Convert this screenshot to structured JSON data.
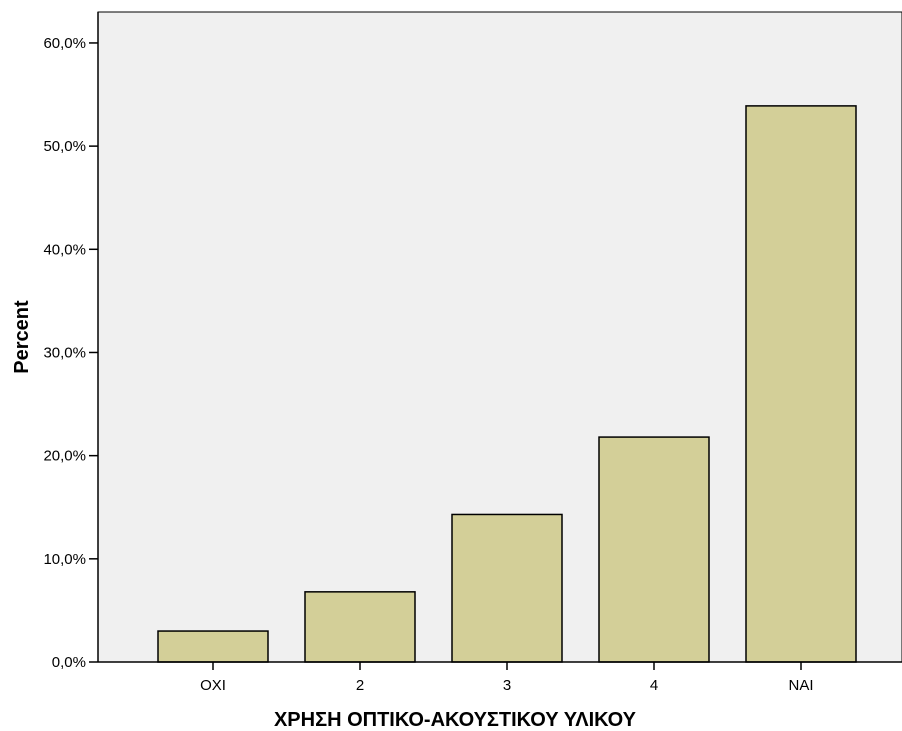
{
  "chart_data": {
    "type": "bar",
    "title": "",
    "xlabel": "ΧΡΗΣΗ ΟΠΤΙΚΟ-ΑΚΟΥΣΤΙΚΟΥ ΥΛΙΚΟΥ",
    "ylabel": "Percent",
    "categories": [
      "ΟΧΙ",
      "2",
      "3",
      "4",
      "ΝΑΙ"
    ],
    "values": [
      3.0,
      6.8,
      14.3,
      21.8,
      53.9
    ],
    "ylim": [
      0,
      63
    ],
    "yticks": [
      0,
      10,
      20,
      30,
      40,
      50,
      60
    ],
    "ytick_labels": [
      "0,0%",
      "10,0%",
      "20,0%",
      "30,0%",
      "40,0%",
      "50,0%",
      "60,0%"
    ],
    "grid": false,
    "legend": "none",
    "colors": {
      "bar_fill": "#d3cf98",
      "bar_stroke": "#000000",
      "plot_background": "#f0f0f0",
      "page_background": "#ffffff"
    }
  }
}
